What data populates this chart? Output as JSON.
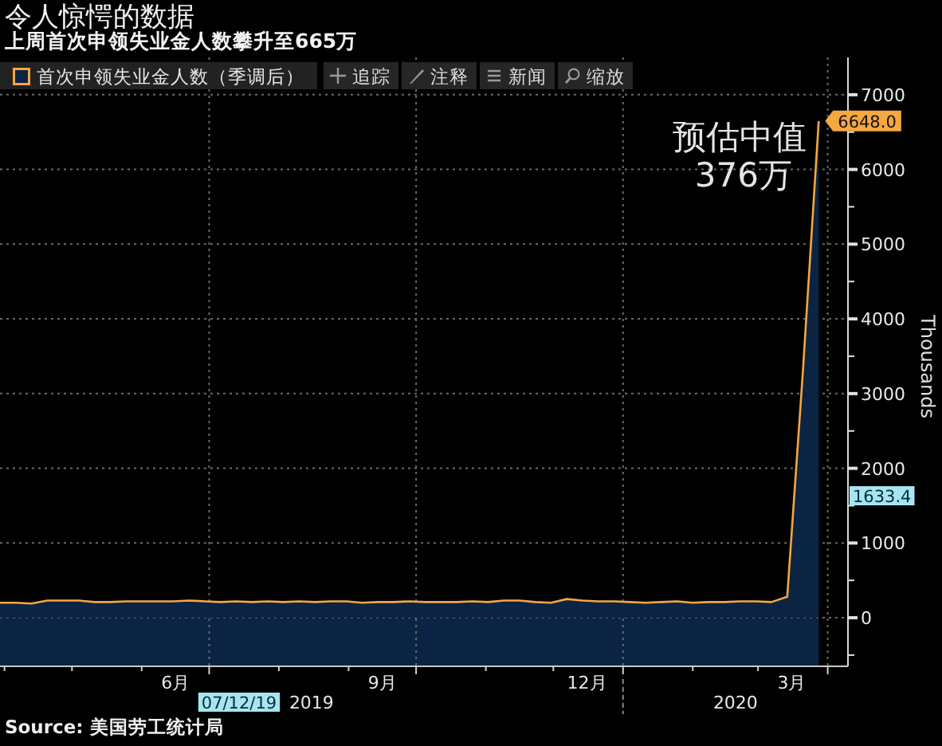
{
  "chart_data": {
    "type": "area",
    "title": "令人惊愕的数据",
    "subtitle": "上周首次申领失业金人数攀升至665万",
    "ylabel": "Thousands",
    "x": [
      "2019-03-30",
      "2019-04-06",
      "2019-04-13",
      "2019-04-20",
      "2019-04-27",
      "2019-05-04",
      "2019-05-11",
      "2019-05-18",
      "2019-05-25",
      "2019-06-01",
      "2019-06-08",
      "2019-06-15",
      "2019-06-22",
      "2019-06-29",
      "2019-07-06",
      "2019-07-13",
      "2019-07-20",
      "2019-07-27",
      "2019-08-03",
      "2019-08-10",
      "2019-08-17",
      "2019-08-24",
      "2019-08-31",
      "2019-09-07",
      "2019-09-14",
      "2019-09-21",
      "2019-09-28",
      "2019-10-05",
      "2019-10-12",
      "2019-10-19",
      "2019-10-26",
      "2019-11-02",
      "2019-11-09",
      "2019-11-16",
      "2019-11-23",
      "2019-11-30",
      "2019-12-07",
      "2019-12-14",
      "2019-12-21",
      "2019-12-28",
      "2020-01-04",
      "2020-01-11",
      "2020-01-18",
      "2020-01-25",
      "2020-02-01",
      "2020-02-08",
      "2020-02-15",
      "2020-02-22",
      "2020-02-29",
      "2020-03-07",
      "2020-03-14",
      "2020-03-21",
      "2020-03-28"
    ],
    "series": [
      {
        "name": "首次申领失业金人数（季调后）",
        "color": "#0b2444",
        "values": [
          200,
          200,
          190,
          230,
          230,
          230,
          210,
          210,
          220,
          220,
          220,
          220,
          230,
          220,
          210,
          220,
          210,
          220,
          210,
          220,
          210,
          220,
          220,
          200,
          210,
          210,
          220,
          210,
          210,
          210,
          220,
          210,
          230,
          230,
          210,
          200,
          250,
          230,
          220,
          220,
          210,
          200,
          210,
          220,
          200,
          210,
          210,
          220,
          220,
          210,
          280,
          3310,
          6648
        ],
        "value_labels": [
          null,
          null,
          null,
          null,
          null,
          null,
          null,
          null,
          null,
          null,
          null,
          null,
          null,
          null,
          null,
          null,
          null,
          null,
          null,
          null,
          null,
          null,
          null,
          null,
          null,
          null,
          null,
          null,
          null,
          null,
          null,
          null,
          null,
          null,
          null,
          null,
          null,
          null,
          null,
          null,
          null,
          null,
          null,
          null,
          null,
          null,
          null,
          null,
          null,
          null,
          null,
          null,
          "6648.0"
        ]
      }
    ],
    "xlim": [
      "2019-03-30",
      "2020-04-10"
    ],
    "xticks": [
      {
        "value": "2019-07-01",
        "label": null
      },
      {
        "value": "2019-10-01",
        "label": null
      },
      {
        "value": "2020-01-01",
        "label": null
      },
      {
        "value": "2020-04-01",
        "label": null
      },
      {
        "value": "2019-04-01",
        "label": null
      },
      {
        "value": "2019-05-01",
        "label": null
      },
      {
        "value": "2019-06-01",
        "label": null
      },
      {
        "value": "2019-08-01",
        "label": null
      },
      {
        "value": "2019-09-01",
        "label": null
      },
      {
        "value": "2019-11-01",
        "label": null
      },
      {
        "value": "2019-12-01",
        "label": null
      },
      {
        "value": "2020-02-01",
        "label": null
      },
      {
        "value": "2020-03-01",
        "label": null
      },
      {
        "value": "2019-06-16",
        "label": "6月"
      },
      {
        "value": "2019-09-16",
        "label": "9月"
      },
      {
        "value": "2019-12-16",
        "label": "12月"
      },
      {
        "value": "2020-03-16",
        "label": "3月"
      }
    ],
    "ylim": [
      -650,
      7500
    ],
    "yticks": [
      0,
      1000,
      2000,
      3000,
      4000,
      5000,
      6000,
      7000,
      {
        "value": -500,
        "label": null
      },
      {
        "value": 500,
        "label": null
      },
      {
        "value": 1500,
        "label": null
      },
      {
        "value": 2500,
        "label": null
      },
      {
        "value": 3500,
        "label": null
      },
      {
        "value": 4500,
        "label": null
      },
      {
        "value": 5500,
        "label": null
      },
      {
        "value": 6500,
        "label": null
      }
    ],
    "grid": true,
    "legend": "top left",
    "annotations": [
      "预估中值\n376万",
      "追踪",
      "注释",
      "新闻",
      "缩放",
      "07/12/19",
      "1633.4",
      "2019",
      "2020",
      "Source: 美国劳工统计局"
    ]
  }
}
